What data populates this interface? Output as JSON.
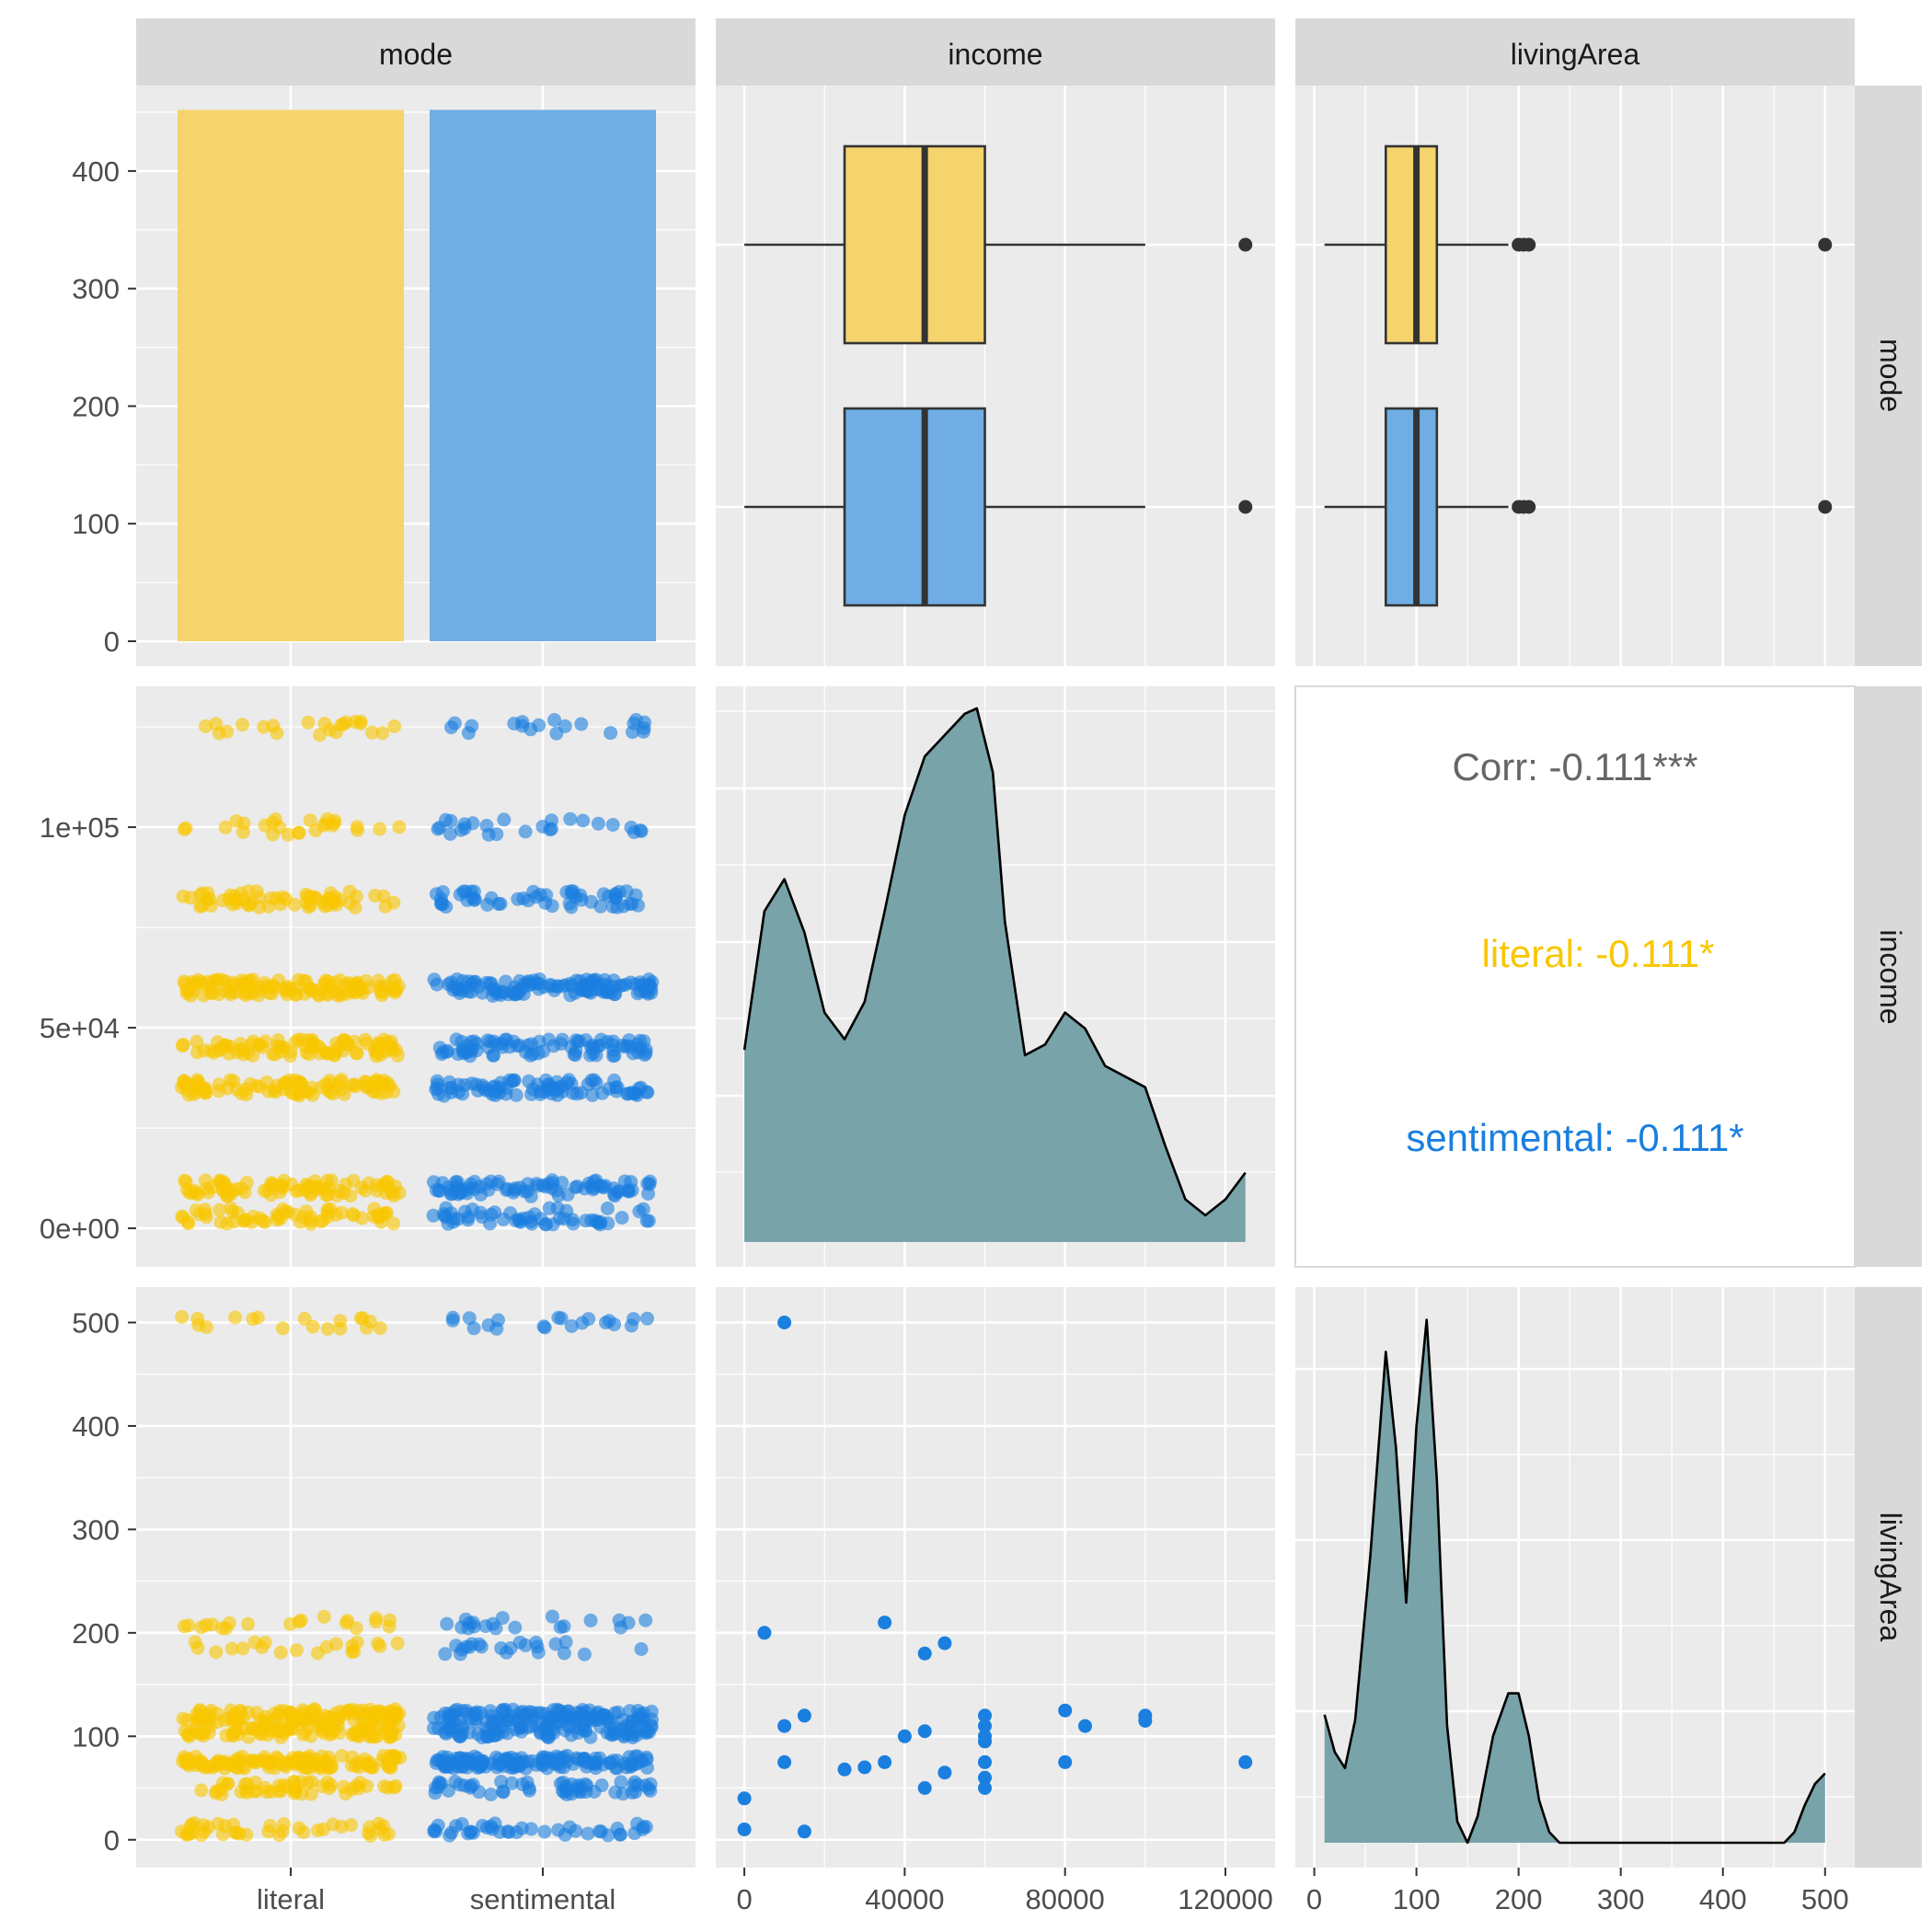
{
  "colors": {
    "literal": "#F9C600",
    "literal_fill": "#F5D46E",
    "sentimental": "#1A7FDF",
    "sentimental_fill": "#6FADE4",
    "density_fill": "#78A3A8",
    "panel_bg": "#EBEBEB",
    "strip_bg": "#D9D9D9",
    "grid": "#FFFFFF",
    "corr_text": "#666666",
    "outlier": "#333333"
  },
  "variables": [
    "mode",
    "income",
    "livingArea"
  ],
  "chart_data": {
    "type": "pairs",
    "title": "",
    "groups": [
      "literal",
      "sentimental"
    ],
    "strip_labels": {
      "mode": "mode",
      "income": "income",
      "livingArea": "livingArea"
    },
    "axes": {
      "count": {
        "range": [
          0,
          450
        ],
        "ticks": [
          0,
          100,
          200,
          300,
          400
        ],
        "tick_labels": [
          "0",
          "100",
          "200",
          "300",
          "400"
        ]
      },
      "income_y": {
        "range": [
          -2500,
          128000
        ],
        "ticks": [
          0,
          50000,
          100000
        ],
        "tick_labels": [
          "0e+00",
          "5e+04",
          "1e+05"
        ]
      },
      "income_x": {
        "range": [
          -3000,
          128500
        ],
        "ticks": [
          0,
          40000,
          80000,
          120000
        ],
        "tick_labels": [
          "0",
          "40000",
          "80000",
          "120000"
        ]
      },
      "living_y": {
        "range": [
          -10,
          520
        ],
        "ticks": [
          0,
          100,
          200,
          300,
          400,
          500
        ],
        "tick_labels": [
          "0",
          "100",
          "200",
          "300",
          "400",
          "500"
        ]
      },
      "living_x": {
        "range": [
          -5,
          520
        ],
        "ticks": [
          0,
          100,
          200,
          300,
          400,
          500
        ],
        "tick_labels": [
          "0",
          "100",
          "200",
          "300",
          "400",
          "500"
        ]
      },
      "mode_x": {
        "categories": [
          "literal",
          "sentimental"
        ]
      }
    },
    "panels": {
      "mode_bar": {
        "type": "bar",
        "categories": [
          "literal",
          "sentimental"
        ],
        "values": [
          452,
          452
        ]
      },
      "income_boxplot": {
        "type": "boxplot",
        "series": [
          {
            "name": "literal",
            "min": 0,
            "q1": 25000,
            "median": 45000,
            "q3": 60000,
            "max": 100000,
            "outliers": [
              125000
            ]
          },
          {
            "name": "sentimental",
            "min": 0,
            "q1": 25000,
            "median": 45000,
            "q3": 60000,
            "max": 100000,
            "outliers": [
              125000
            ]
          }
        ]
      },
      "living_boxplot": {
        "type": "boxplot",
        "series": [
          {
            "name": "literal",
            "min": 10,
            "q1": 70,
            "median": 100,
            "q3": 120,
            "max": 190,
            "outliers": [
              200,
              205,
              210,
              500
            ]
          },
          {
            "name": "sentimental",
            "min": 10,
            "q1": 70,
            "median": 100,
            "q3": 120,
            "max": 190,
            "outliers": [
              200,
              205,
              210,
              500
            ]
          }
        ]
      },
      "income_by_mode": {
        "type": "scatter",
        "jitter": true,
        "levels": [
          {
            "value": 125000,
            "literal": 22,
            "sentimental": 20
          },
          {
            "value": 100000,
            "literal": 26,
            "sentimental": 26
          },
          {
            "value": 82000,
            "literal": 60,
            "sentimental": 55
          },
          {
            "value": 60000,
            "literal": 120,
            "sentimental": 120
          },
          {
            "value": 45000,
            "literal": 90,
            "sentimental": 85
          },
          {
            "value": 35000,
            "literal": 90,
            "sentimental": 85
          },
          {
            "value": 10000,
            "literal": 80,
            "sentimental": 80
          },
          {
            "value": 3000,
            "literal": 60,
            "sentimental": 55
          }
        ]
      },
      "income_density": {
        "type": "area",
        "x": [
          0,
          5000,
          10000,
          15000,
          20000,
          25000,
          30000,
          35000,
          40000,
          45000,
          50000,
          55000,
          58000,
          62000,
          65000,
          70000,
          75000,
          80000,
          85000,
          90000,
          95000,
          100000,
          105000,
          110000,
          115000,
          120000,
          125000
        ],
        "y": [
          0.36,
          0.62,
          0.68,
          0.58,
          0.43,
          0.38,
          0.45,
          0.62,
          0.8,
          0.91,
          0.95,
          0.99,
          1.0,
          0.88,
          0.6,
          0.35,
          0.37,
          0.43,
          0.4,
          0.33,
          0.31,
          0.29,
          0.18,
          0.08,
          0.05,
          0.08,
          0.13
        ]
      },
      "correlation": {
        "overall": "Corr: -0.111***",
        "literal": "literal: -0.111*",
        "sentimental": "sentimental: -0.111*"
      },
      "living_by_mode": {
        "type": "scatter",
        "jitter": true,
        "levels": [
          {
            "value": 500,
            "literal": 18,
            "sentimental": 20
          },
          {
            "value": 210,
            "literal": 20,
            "sentimental": 20
          },
          {
            "value": 185,
            "literal": 20,
            "sentimental": 22
          },
          {
            "value": 120,
            "literal": 110,
            "sentimental": 110
          },
          {
            "value": 105,
            "literal": 90,
            "sentimental": 90
          },
          {
            "value": 75,
            "literal": 120,
            "sentimental": 130
          },
          {
            "value": 50,
            "literal": 50,
            "sentimental": 55
          },
          {
            "value": 10,
            "literal": 40,
            "sentimental": 40
          }
        ]
      },
      "income_living_scatter": {
        "type": "scatter",
        "points": [
          [
            0,
            10
          ],
          [
            0,
            40
          ],
          [
            5000,
            200
          ],
          [
            10000,
            500
          ],
          [
            10000,
            110
          ],
          [
            10000,
            75
          ],
          [
            15000,
            120
          ],
          [
            15000,
            8
          ],
          [
            25000,
            68
          ],
          [
            30000,
            70
          ],
          [
            35000,
            210
          ],
          [
            35000,
            75
          ],
          [
            40000,
            100
          ],
          [
            45000,
            180
          ],
          [
            45000,
            105
          ],
          [
            45000,
            50
          ],
          [
            50000,
            190
          ],
          [
            50000,
            65
          ],
          [
            60000,
            120
          ],
          [
            60000,
            110
          ],
          [
            60000,
            100
          ],
          [
            60000,
            95
          ],
          [
            60000,
            75
          ],
          [
            60000,
            60
          ],
          [
            60000,
            50
          ],
          [
            80000,
            125
          ],
          [
            80000,
            75
          ],
          [
            85000,
            110
          ],
          [
            100000,
            120
          ],
          [
            100000,
            115
          ],
          [
            125000,
            75
          ]
        ]
      },
      "living_density": {
        "type": "area",
        "x": [
          10,
          20,
          30,
          40,
          55,
          70,
          80,
          90,
          100,
          110,
          120,
          130,
          140,
          150,
          160,
          175,
          190,
          200,
          210,
          220,
          230,
          240,
          260,
          300,
          400,
          460,
          470,
          480,
          490,
          500
        ],
        "y": [
          0.24,
          0.17,
          0.14,
          0.23,
          0.54,
          0.92,
          0.74,
          0.45,
          0.78,
          0.98,
          0.68,
          0.22,
          0.04,
          0.0,
          0.05,
          0.2,
          0.28,
          0.28,
          0.2,
          0.08,
          0.02,
          0.0,
          0.0,
          0.0,
          0.0,
          0.0,
          0.02,
          0.07,
          0.11,
          0.13
        ]
      }
    }
  }
}
